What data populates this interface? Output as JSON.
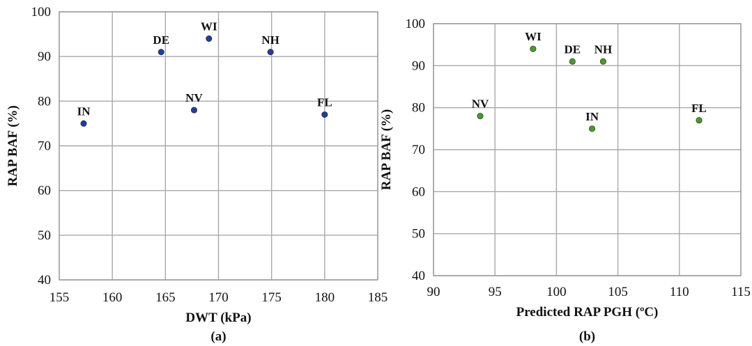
{
  "chart_data": [
    {
      "type": "scatter",
      "panel_label": "(a)",
      "xlabel": "DWT (kPa)",
      "ylabel": "RAP BAF (%)",
      "xlim": [
        155,
        185
      ],
      "ylim": [
        40,
        100
      ],
      "xticks": [
        "155",
        "160",
        "165",
        "170",
        "175",
        "180",
        "185"
      ],
      "yticks": [
        "40",
        "50",
        "60",
        "70",
        "80",
        "90",
        "100"
      ],
      "grid": true,
      "marker_color": "#1f3f9a",
      "points": [
        {
          "label": "IN",
          "x": 157.3,
          "y": 75
        },
        {
          "label": "DE",
          "x": 164.6,
          "y": 91
        },
        {
          "label": "WI",
          "x": 169.1,
          "y": 94
        },
        {
          "label": "NV",
          "x": 167.7,
          "y": 78
        },
        {
          "label": "NH",
          "x": 174.9,
          "y": 91
        },
        {
          "label": "FL",
          "x": 180.0,
          "y": 77
        }
      ]
    },
    {
      "type": "scatter",
      "panel_label": "(b)",
      "xlabel": "Predicted RAP PGH (ºC)",
      "ylabel": "RAP BAF (%)",
      "xlim": [
        90,
        115
      ],
      "ylim": [
        40,
        100
      ],
      "xticks": [
        "90",
        "95",
        "100",
        "105",
        "110",
        "115"
      ],
      "yticks": [
        "40",
        "50",
        "60",
        "70",
        "80",
        "90",
        "100"
      ],
      "grid": true,
      "marker_color": "#4a9a2e",
      "points": [
        {
          "label": "NV",
          "x": 93.8,
          "y": 78
        },
        {
          "label": "WI",
          "x": 98.1,
          "y": 94
        },
        {
          "label": "DE",
          "x": 101.3,
          "y": 91
        },
        {
          "label": "NH",
          "x": 103.8,
          "y": 91
        },
        {
          "label": "IN",
          "x": 102.9,
          "y": 75
        },
        {
          "label": "FL",
          "x": 111.6,
          "y": 77
        }
      ]
    }
  ]
}
